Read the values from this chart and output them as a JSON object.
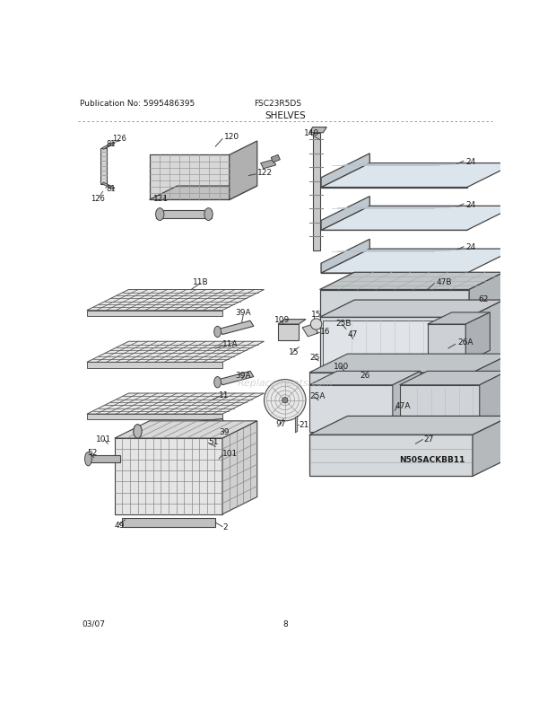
{
  "title": "SHELVES",
  "pub_no": "Publication No: 5995486395",
  "model": "FSC23R5DS",
  "date": "03/07",
  "page": "8",
  "model_code": "N50SACKBB11",
  "bg_color": "#ffffff",
  "text_color": "#1a1a1a",
  "line_color": "#444444",
  "grid_color": "#555555",
  "light_fill": "#e8e8e8",
  "mid_fill": "#cccccc",
  "dark_fill": "#aaaaaa"
}
